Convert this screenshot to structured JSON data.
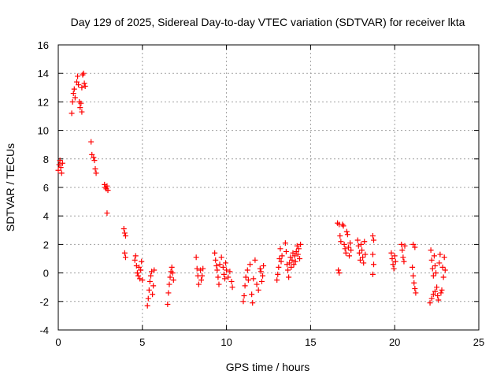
{
  "chart_data": {
    "type": "scatter",
    "title": "Day 129 of 2025, Sidereal Day-to-day VTEC variation (SDTVAR) for receiver lkta",
    "xlabel": "GPS time / hours",
    "ylabel": "SDTVAR / TECUs",
    "xlim": [
      0,
      25
    ],
    "ylim": [
      -4,
      16
    ],
    "xticks": [
      "0",
      "5",
      "10",
      "15",
      "20",
      "25"
    ],
    "yticks": [
      "-4",
      "-2",
      "0",
      "2",
      "4",
      "6",
      "8",
      "10",
      "12",
      "14",
      "16"
    ],
    "grid": true,
    "marker": "+",
    "color": "#ff0000",
    "series": [
      {
        "name": "SDTVAR",
        "points": [
          [
            0.0,
            7.2
          ],
          [
            0.05,
            7.6
          ],
          [
            0.1,
            7.9
          ],
          [
            0.15,
            7.4
          ],
          [
            0.2,
            7.0
          ],
          [
            0.25,
            7.7
          ],
          [
            0.8,
            11.2
          ],
          [
            0.85,
            12.0
          ],
          [
            0.9,
            12.6
          ],
          [
            0.95,
            12.9
          ],
          [
            1.0,
            12.3
          ],
          [
            1.1,
            13.4
          ],
          [
            1.15,
            13.8
          ],
          [
            1.2,
            13.2
          ],
          [
            1.25,
            12.0
          ],
          [
            1.3,
            11.6
          ],
          [
            1.35,
            11.9
          ],
          [
            1.4,
            13.0
          ],
          [
            1.45,
            13.9
          ],
          [
            1.5,
            14.0
          ],
          [
            1.55,
            13.3
          ],
          [
            1.6,
            13.1
          ],
          [
            1.4,
            11.3
          ],
          [
            1.95,
            9.2
          ],
          [
            2.0,
            8.3
          ],
          [
            2.1,
            8.1
          ],
          [
            2.15,
            7.9
          ],
          [
            2.2,
            7.3
          ],
          [
            2.25,
            7.0
          ],
          [
            2.75,
            6.2
          ],
          [
            2.8,
            6.0
          ],
          [
            2.85,
            5.9
          ],
          [
            2.9,
            6.1
          ],
          [
            2.95,
            5.8
          ],
          [
            2.9,
            4.2
          ],
          [
            3.9,
            3.1
          ],
          [
            3.95,
            2.8
          ],
          [
            4.0,
            2.6
          ],
          [
            3.95,
            1.4
          ],
          [
            4.0,
            1.1
          ],
          [
            4.55,
            0.9
          ],
          [
            4.6,
            1.2
          ],
          [
            4.65,
            0.5
          ],
          [
            4.7,
            0.0
          ],
          [
            4.75,
            -0.2
          ],
          [
            4.8,
            0.4
          ],
          [
            4.85,
            -0.4
          ],
          [
            4.9,
            0.2
          ],
          [
            4.95,
            0.8
          ],
          [
            5.0,
            -0.5
          ],
          [
            5.3,
            -2.3
          ],
          [
            5.35,
            -1.8
          ],
          [
            5.4,
            -1.2
          ],
          [
            5.45,
            -0.6
          ],
          [
            5.5,
            -0.2
          ],
          [
            5.55,
            0.1
          ],
          [
            5.6,
            -1.5
          ],
          [
            5.65,
            -0.9
          ],
          [
            5.7,
            0.2
          ],
          [
            6.5,
            -2.2
          ],
          [
            6.55,
            -1.4
          ],
          [
            6.6,
            -0.8
          ],
          [
            6.65,
            -0.3
          ],
          [
            6.7,
            0.1
          ],
          [
            6.75,
            0.4
          ],
          [
            6.8,
            0.0
          ],
          [
            6.85,
            -0.5
          ],
          [
            8.2,
            1.1
          ],
          [
            8.25,
            0.3
          ],
          [
            8.3,
            -0.2
          ],
          [
            8.35,
            -0.8
          ],
          [
            8.45,
            0.2
          ],
          [
            8.5,
            -0.5
          ],
          [
            8.55,
            -0.2
          ],
          [
            8.6,
            0.3
          ],
          [
            9.3,
            1.4
          ],
          [
            9.35,
            0.9
          ],
          [
            9.4,
            0.5
          ],
          [
            9.45,
            0.2
          ],
          [
            9.5,
            -0.3
          ],
          [
            9.55,
            -0.8
          ],
          [
            9.6,
            0.6
          ],
          [
            9.7,
            1.1
          ],
          [
            9.8,
            0.4
          ],
          [
            9.85,
            -0.1
          ],
          [
            9.9,
            -0.4
          ],
          [
            9.95,
            0.7
          ],
          [
            10.0,
            0.2
          ],
          [
            10.1,
            -0.3
          ],
          [
            10.2,
            0.1
          ],
          [
            10.3,
            -0.6
          ],
          [
            10.35,
            -1.0
          ],
          [
            11.0,
            -2.0
          ],
          [
            11.05,
            -1.6
          ],
          [
            11.1,
            -0.9
          ],
          [
            11.15,
            -0.3
          ],
          [
            11.25,
            0.2
          ],
          [
            11.3,
            -0.5
          ],
          [
            11.4,
            0.6
          ],
          [
            11.5,
            -1.5
          ],
          [
            11.55,
            -2.1
          ],
          [
            11.6,
            -0.4
          ],
          [
            11.7,
            0.9
          ],
          [
            11.8,
            -0.8
          ],
          [
            11.9,
            -1.2
          ],
          [
            12.0,
            0.3
          ],
          [
            12.05,
            0.1
          ],
          [
            12.1,
            -0.6
          ],
          [
            12.15,
            -0.2
          ],
          [
            12.2,
            0.5
          ],
          [
            13.0,
            -0.5
          ],
          [
            13.05,
            -0.1
          ],
          [
            13.1,
            0.4
          ],
          [
            13.15,
            1.0
          ],
          [
            13.2,
            1.7
          ],
          [
            13.25,
            0.8
          ],
          [
            13.3,
            1.2
          ],
          [
            13.5,
            2.1
          ],
          [
            13.55,
            1.5
          ],
          [
            13.6,
            0.6
          ],
          [
            13.65,
            0.2
          ],
          [
            13.7,
            -0.3
          ],
          [
            13.75,
            0.7
          ],
          [
            13.8,
            1.1
          ],
          [
            13.85,
            0.4
          ],
          [
            13.9,
            0.9
          ],
          [
            13.95,
            1.4
          ],
          [
            14.0,
            0.6
          ],
          [
            14.05,
            1.2
          ],
          [
            14.1,
            0.8
          ],
          [
            14.15,
            1.5
          ],
          [
            14.2,
            1.9
          ],
          [
            14.25,
            1.3
          ],
          [
            14.3,
            1.7
          ],
          [
            14.35,
            1.0
          ],
          [
            14.4,
            2.0
          ],
          [
            16.6,
            3.5
          ],
          [
            16.7,
            3.4
          ],
          [
            16.75,
            2.6
          ],
          [
            16.8,
            2.2
          ],
          [
            16.65,
            0.2
          ],
          [
            16.7,
            0.0
          ],
          [
            16.9,
            3.4
          ],
          [
            16.95,
            3.3
          ],
          [
            17.0,
            2.0
          ],
          [
            17.05,
            1.7
          ],
          [
            17.1,
            1.4
          ],
          [
            17.15,
            2.9
          ],
          [
            17.2,
            2.7
          ],
          [
            17.25,
            1.8
          ],
          [
            17.3,
            1.2
          ],
          [
            17.35,
            2.1
          ],
          [
            17.4,
            1.6
          ],
          [
            17.8,
            2.3
          ],
          [
            17.85,
            1.9
          ],
          [
            17.9,
            1.4
          ],
          [
            17.95,
            0.9
          ],
          [
            18.0,
            2.0
          ],
          [
            18.05,
            1.6
          ],
          [
            18.1,
            1.1
          ],
          [
            18.15,
            0.7
          ],
          [
            18.2,
            2.2
          ],
          [
            18.25,
            1.3
          ],
          [
            18.7,
            2.6
          ],
          [
            18.75,
            2.3
          ],
          [
            18.7,
            1.3
          ],
          [
            18.75,
            0.6
          ],
          [
            18.7,
            -0.1
          ],
          [
            19.8,
            1.4
          ],
          [
            19.85,
            1.0
          ],
          [
            19.9,
            0.6
          ],
          [
            19.95,
            0.3
          ],
          [
            20.0,
            1.2
          ],
          [
            20.05,
            0.8
          ],
          [
            20.4,
            2.0
          ],
          [
            20.45,
            1.6
          ],
          [
            20.5,
            1.1
          ],
          [
            20.55,
            0.8
          ],
          [
            20.6,
            1.9
          ],
          [
            21.05,
            0.4
          ],
          [
            21.1,
            -0.2
          ],
          [
            21.15,
            -0.7
          ],
          [
            21.2,
            -1.1
          ],
          [
            21.25,
            -1.4
          ],
          [
            21.1,
            2.0
          ],
          [
            21.2,
            1.8
          ],
          [
            22.1,
            -2.1
          ],
          [
            22.2,
            -1.8
          ],
          [
            22.3,
            -1.5
          ],
          [
            22.4,
            -1.3
          ],
          [
            22.5,
            -1.0
          ],
          [
            22.15,
            1.6
          ],
          [
            22.2,
            0.9
          ],
          [
            22.25,
            0.3
          ],
          [
            22.3,
            -0.2
          ],
          [
            22.35,
            1.2
          ],
          [
            22.4,
            0.5
          ],
          [
            22.45,
            0.0
          ],
          [
            22.55,
            -1.6
          ],
          [
            22.6,
            -1.9
          ],
          [
            22.65,
            0.7
          ],
          [
            22.7,
            1.3
          ],
          [
            22.75,
            -1.4
          ],
          [
            22.8,
            -1.2
          ],
          [
            22.85,
            0.4
          ],
          [
            22.9,
            -0.3
          ],
          [
            22.95,
            1.1
          ],
          [
            23.0,
            0.2
          ]
        ]
      }
    ]
  }
}
